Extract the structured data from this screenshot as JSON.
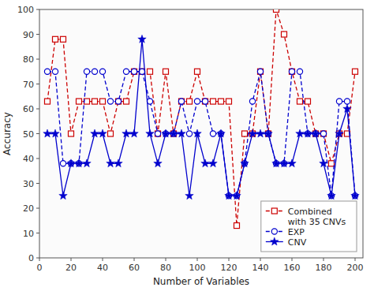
{
  "chart_data": {
    "type": "line",
    "xlabel": "Number of Variables",
    "ylabel": "Accuracy",
    "x": [
      5,
      10,
      15,
      20,
      25,
      30,
      35,
      40,
      45,
      50,
      55,
      60,
      65,
      70,
      75,
      80,
      85,
      90,
      95,
      100,
      105,
      110,
      115,
      120,
      125,
      130,
      135,
      140,
      145,
      150,
      155,
      160,
      165,
      170,
      175,
      180,
      185,
      190,
      195,
      200
    ],
    "series": [
      {
        "name": "Combined\nwith 35 CNVs",
        "color": "#CC0000",
        "marker": "square",
        "line_style": "dashed",
        "values": [
          63,
          88,
          88,
          50,
          63,
          63,
          63,
          63,
          50,
          63,
          63,
          75,
          75,
          75,
          50,
          75,
          50,
          63,
          63,
          75,
          63,
          63,
          63,
          63,
          13,
          50,
          50,
          75,
          50,
          100,
          90,
          75,
          63,
          63,
          50,
          50,
          38,
          50,
          50,
          75
        ]
      },
      {
        "name": "EXP",
        "color": "#0000CD",
        "marker": "circle",
        "line_style": "dashed",
        "values": [
          75,
          75,
          38,
          38,
          38,
          75,
          75,
          75,
          63,
          63,
          75,
          75,
          75,
          63,
          50,
          50,
          50,
          63,
          50,
          63,
          63,
          50,
          50,
          25,
          25,
          38,
          63,
          75,
          50,
          38,
          38,
          75,
          75,
          50,
          50,
          50,
          25,
          63,
          63,
          25
        ]
      },
      {
        "name": "CNV",
        "color": "#0000CD",
        "marker": "star",
        "line_style": "solid",
        "values": [
          50,
          50,
          25,
          38,
          38,
          38,
          50,
          50,
          38,
          38,
          50,
          50,
          88,
          50,
          38,
          50,
          50,
          50,
          25,
          50,
          38,
          38,
          50,
          25,
          25,
          38,
          50,
          50,
          50,
          38,
          38,
          38,
          50,
          50,
          50,
          38,
          25,
          50,
          60,
          25
        ]
      }
    ],
    "xlim": [
      0,
      205
    ],
    "ylim": [
      0,
      100
    ],
    "xticks": [
      0,
      20,
      40,
      60,
      80,
      100,
      120,
      140,
      160,
      180,
      200
    ],
    "yticks": [
      0,
      10,
      20,
      30,
      40,
      50,
      60,
      70,
      80,
      90,
      100
    ],
    "grid": false,
    "legend": "lower right"
  }
}
